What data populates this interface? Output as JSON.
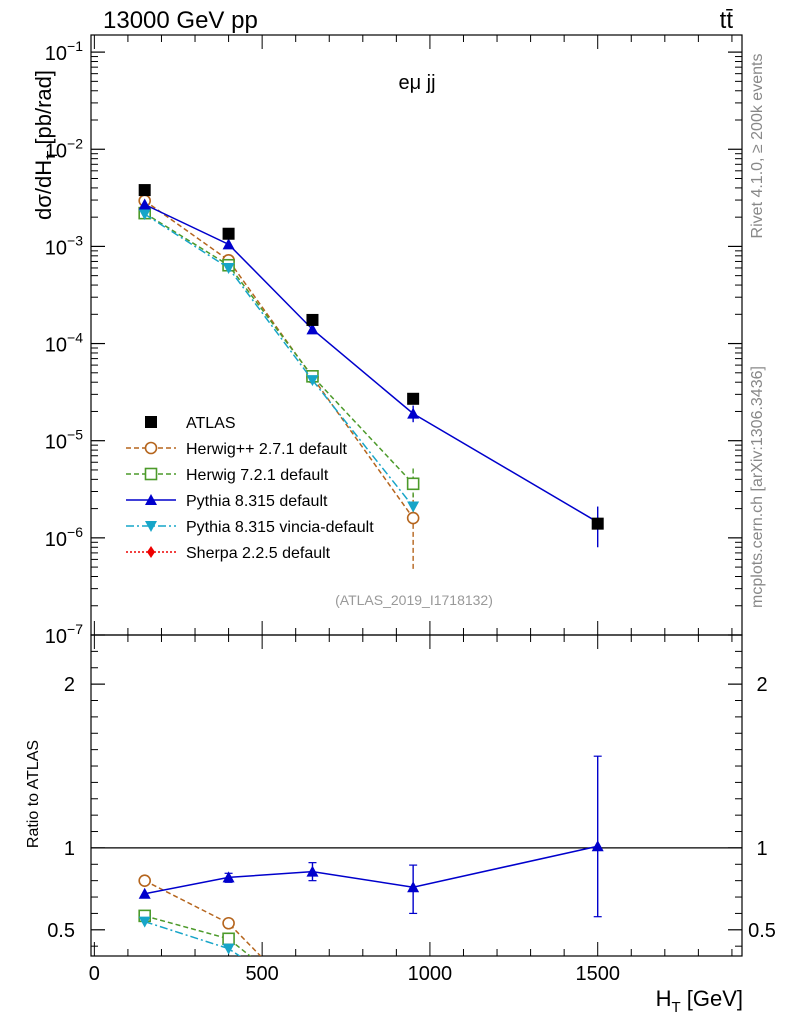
{
  "header": {
    "left": "13000 GeV pp",
    "right": "tt̄"
  },
  "side_texts": {
    "rivet": "Rivet 4.1.0, ≥ 200k events",
    "mcplots": "mcplots.cern.ch [arXiv:1306.3436]"
  },
  "chart_data": [
    {
      "type": "line",
      "panel": "main",
      "title": "eμ jj",
      "watermark": "(ATLAS_2019_I1718132)",
      "ylabel": "dσ/dH_T [pb/rad]",
      "xlabel": "",
      "yscale": "log",
      "xlim": [
        -10,
        1930
      ],
      "ylim": [
        1e-07,
        0.15
      ],
      "yticks": [
        {
          "value": 1e-07,
          "label": "10",
          "exp": "−7"
        },
        {
          "value": 1e-06,
          "label": "10",
          "exp": "−6"
        },
        {
          "value": 1e-05,
          "label": "10",
          "exp": "−5"
        },
        {
          "value": 0.0001,
          "label": "10",
          "exp": "−4"
        },
        {
          "value": 0.001,
          "label": "10",
          "exp": "−3"
        },
        {
          "value": 0.01,
          "label": "10",
          "exp": "−2"
        },
        {
          "value": 0.1,
          "label": "10",
          "exp": "−1"
        }
      ],
      "legend_position": "lower-left",
      "series": [
        {
          "name": "ATLAS",
          "color": "#000000",
          "marker": "square",
          "line": "none",
          "x": [
            150,
            400,
            650,
            950,
            1500
          ],
          "y": [
            0.0038,
            0.00135,
            0.000175,
            2.7e-05,
            1.4e-06
          ],
          "err_lo": [
            null,
            null,
            null,
            null,
            1.38e-06
          ],
          "err_hi": [
            null,
            null,
            null,
            null,
            1.42e-06
          ]
        },
        {
          "name": "Herwig++ 2.7.1 default",
          "color": "#b5651d",
          "marker": "circle-open",
          "line": "dashed",
          "x": [
            150,
            400,
            650,
            950
          ],
          "y": [
            0.00295,
            0.00072,
            4.5e-05,
            1.6e-06
          ],
          "err_lo": [
            null,
            null,
            null,
            4.8e-07
          ],
          "err_hi": [
            null,
            null,
            null,
            2.8e-06
          ]
        },
        {
          "name": "Herwig 7.2.1 default",
          "color": "#4c9a2a",
          "marker": "square-open",
          "line": "dashed",
          "x": [
            150,
            400,
            650,
            950
          ],
          "y": [
            0.0022,
            0.00064,
            4.6e-05,
            3.6e-06
          ],
          "err_lo": [
            null,
            null,
            null,
            2.6e-06
          ],
          "err_hi": [
            null,
            null,
            null,
            5.2e-06
          ]
        },
        {
          "name": "Pythia 8.315 default",
          "color": "#0000cc",
          "marker": "triangle-up",
          "line": "solid",
          "x": [
            150,
            400,
            650,
            950,
            1500
          ],
          "y": [
            0.0027,
            0.00105,
            0.00014,
            1.9e-05,
            1.45e-06
          ],
          "err_lo": [
            null,
            null,
            null,
            1.55e-05,
            8e-07
          ],
          "err_hi": [
            null,
            null,
            null,
            2.3e-05,
            2.1e-06
          ]
        },
        {
          "name": "Pythia 8.315 vincia-default",
          "color": "#17a5c8",
          "marker": "triangle-down",
          "line": "dashdot",
          "x": [
            150,
            400,
            650,
            950
          ],
          "y": [
            0.00215,
            0.0006,
            4.2e-05,
            2.1e-06
          ],
          "err_lo": [
            null,
            null,
            null,
            null
          ],
          "err_hi": [
            null,
            null,
            null,
            null
          ]
        },
        {
          "name": "Sherpa 2.2.5 default",
          "color": "#ee0000",
          "marker": "diamond",
          "line": "dotted",
          "x": [],
          "y": [],
          "err_lo": [],
          "err_hi": []
        }
      ]
    },
    {
      "type": "line",
      "panel": "ratio",
      "ylabel": "Ratio to ATLAS",
      "xlabel": "H_T [GeV]",
      "xlabel_main": "H",
      "xlabel_sub": "T",
      "xlabel_unit": " [GeV]",
      "xlim": [
        -10,
        1930
      ],
      "ylim": [
        0.34,
        2.3
      ],
      "reference_line": 1,
      "yticks": [
        0.5,
        1,
        2
      ],
      "ytick_labels": [
        "0.5",
        "1",
        "2"
      ],
      "xticks": [
        0,
        500,
        1000,
        1500
      ],
      "xtick_labels": [
        "0",
        "500",
        "1000",
        "1500"
      ],
      "series": [
        {
          "name": "Herwig++ 2.7.1 default",
          "color": "#b5651d",
          "marker": "circle-open",
          "line": "dashed",
          "x": [
            150,
            400,
            500
          ],
          "y": [
            0.8,
            0.54,
            0.33
          ],
          "marker_mask": [
            true,
            true,
            false
          ]
        },
        {
          "name": "Herwig 7.2.1 default",
          "color": "#4c9a2a",
          "marker": "square-open",
          "line": "dashed",
          "x": [
            150,
            400,
            470
          ],
          "y": [
            0.585,
            0.445,
            0.33
          ],
          "marker_mask": [
            true,
            true,
            false
          ]
        },
        {
          "name": "Pythia 8.315 default",
          "color": "#0000cc",
          "marker": "triangle-up",
          "line": "solid",
          "x": [
            150,
            400,
            650,
            950,
            1500
          ],
          "y": [
            0.72,
            0.82,
            0.855,
            0.76,
            1.01
          ],
          "marker_mask": [
            true,
            true,
            true,
            true,
            true
          ],
          "err_lo": [
            null,
            0.79,
            0.8,
            0.6,
            0.58
          ],
          "err_hi": [
            null,
            0.845,
            0.91,
            0.895,
            1.56
          ]
        },
        {
          "name": "Pythia 8.315 vincia-default",
          "color": "#17a5c8",
          "marker": "triangle-down",
          "line": "dashdot",
          "x": [
            150,
            400,
            440
          ],
          "y": [
            0.55,
            0.385,
            0.33
          ],
          "marker_mask": [
            true,
            true,
            false
          ]
        }
      ]
    }
  ]
}
